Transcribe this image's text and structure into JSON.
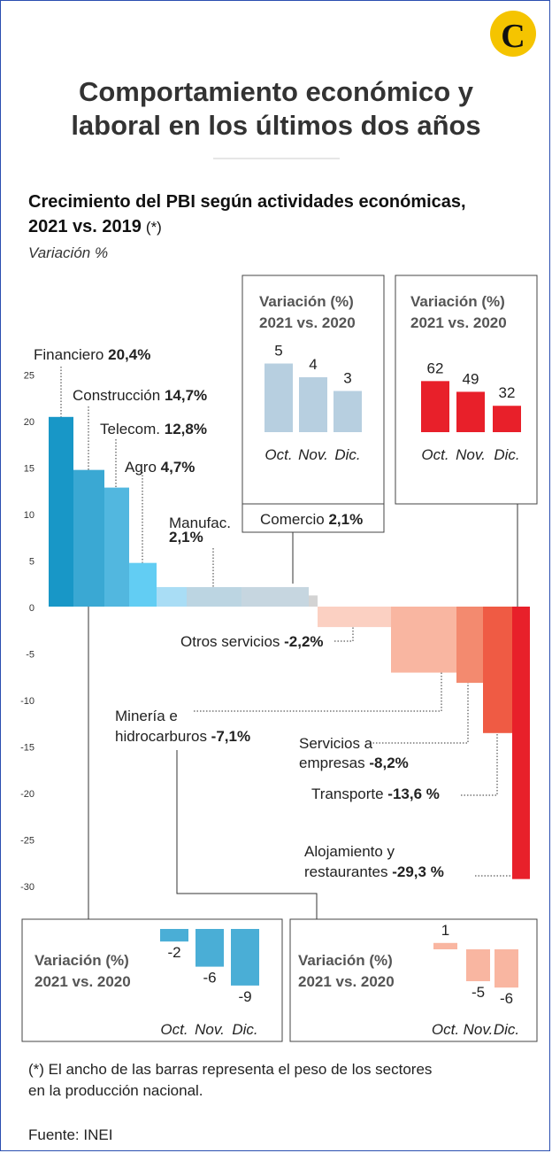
{
  "header": {
    "logo_letter": "C",
    "logo_color": "#f5c400",
    "title_line1": "Comportamiento económico y",
    "title_line2": "laboral en los últimos dos años"
  },
  "chart_data": [
    {
      "type": "bar",
      "title_line1": "Crecimiento del PBI según actividades económicas,",
      "title_line2": "2021 vs. 2019",
      "title_asterisk": "(*)",
      "ylabel": "Variación %",
      "ylim": [
        -30,
        25
      ],
      "y_ticks": [
        25,
        20,
        15,
        10,
        5,
        0,
        -5,
        -10,
        -15,
        -20,
        -25,
        -30
      ],
      "note": "El ancho de las barras representa el peso de los sectores en la producción nacional.",
      "sectors": [
        {
          "name": "Financiero",
          "value": 20.4,
          "value_label": "20,4%",
          "color": "#1897c7"
        },
        {
          "name": "Construcción",
          "value": 14.7,
          "value_label": "14,7%",
          "color": "#3aa8d3"
        },
        {
          "name": "Telecom.",
          "value": 12.8,
          "value_label": "12,8%",
          "color": "#52b7df"
        },
        {
          "name": "Agro",
          "value": 4.7,
          "value_label": "4,7%",
          "color": "#62cdf3"
        },
        {
          "name": "Manufac.",
          "value": 2.1,
          "value_label": "2,1%",
          "color": "#a9ddf5"
        },
        {
          "name": "",
          "value": 2.1,
          "color": "#bcd5e2"
        },
        {
          "name": "Comercio",
          "value": 2.1,
          "value_label": "2,1%",
          "color": "#c6d6e0"
        },
        {
          "name": "",
          "value": 1.2,
          "color": "#d3d3d3"
        },
        {
          "name": "Otros servicios",
          "value": -2.2,
          "value_label": "-2,2%",
          "color": "#fbd0c2"
        },
        {
          "name": "Minería e hidrocarburos",
          "value": -7.1,
          "value_label": "-7,1%",
          "color": "#f9b6a1"
        },
        {
          "name": "Servicios a empresas",
          "value": -8.2,
          "value_label": "-8,2%",
          "color": "#f38a6f"
        },
        {
          "name": "Transporte",
          "value": -13.6,
          "value_label": "-13,6 %",
          "color": "#ef5b44"
        },
        {
          "name": "Alojamiento y restaurantes",
          "value": -29.3,
          "value_label": "-29,3 %",
          "color": "#e8202a"
        }
      ]
    },
    {
      "type": "bar",
      "inset_of": "Comercio",
      "title_line1": "Variación (%)",
      "title_line2": "2021 vs. 2020",
      "categories": [
        "Oct.",
        "Nov.",
        "Dic."
      ],
      "values": [
        5,
        4,
        3
      ],
      "color": "#b7cfe0"
    },
    {
      "type": "bar",
      "inset_of": "Alojamiento y restaurantes",
      "title_line1": "Variación (%)",
      "title_line2": "2021 vs. 2020",
      "categories": [
        "Oct.",
        "Nov.",
        "Dic."
      ],
      "values": [
        62,
        49,
        32
      ],
      "color": "#e8202a"
    },
    {
      "type": "bar",
      "inset_of": "Financiero",
      "title_line1": "Variación (%)",
      "title_line2": "2021 vs. 2020",
      "categories": [
        "Oct.",
        "Nov.",
        "Dic."
      ],
      "values": [
        -2,
        -6,
        -9
      ],
      "color": "#4aaed6"
    },
    {
      "type": "bar",
      "inset_of": "Minería e hidrocarburos",
      "title_line1": "Variación (%)",
      "title_line2": "2021 vs. 2020",
      "categories": [
        "Oct.",
        "Nov.",
        "Dic."
      ],
      "values": [
        1,
        -5,
        -6
      ],
      "color": "#f9b6a1"
    }
  ],
  "footer": {
    "note_prefix": "(*) El ancho de las barras representa el peso de los sectores",
    "note_line2": "en la producción nacional.",
    "source": "Fuente: INEI"
  }
}
